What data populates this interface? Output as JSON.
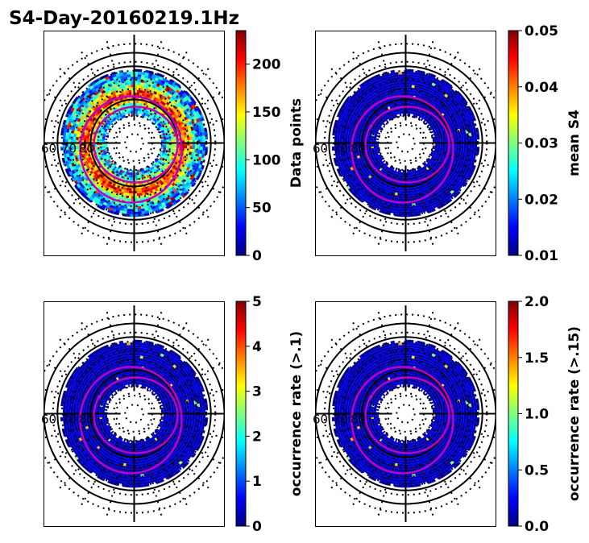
{
  "figure_title": "S4-Day-20160219.1Hz",
  "colormap": [
    "#00007f",
    "#0000ff",
    "#007fff",
    "#00ffff",
    "#7fff7f",
    "#ffff00",
    "#ff7f00",
    "#ff0000",
    "#7f0000"
  ],
  "chart_data": [
    {
      "type": "heatmap",
      "projection": "polar",
      "title": "",
      "colorbar_label": "Data points",
      "vmin": 0,
      "vmax": 235,
      "colorbar_ticks": [
        "0",
        "50",
        "100",
        "150",
        "200"
      ],
      "colorbar_tick_values": [
        0,
        50,
        100,
        150,
        200
      ],
      "lat_tick_labels": [
        "60",
        "70",
        "80"
      ],
      "field": "datapoints"
    },
    {
      "type": "heatmap",
      "projection": "polar",
      "title": "",
      "colorbar_label": "mean S4",
      "vmin": 0.01,
      "vmax": 0.05,
      "colorbar_ticks": [
        "0.01",
        "0.02",
        "0.03",
        "0.04",
        "0.05"
      ],
      "colorbar_tick_values": [
        0.01,
        0.02,
        0.03,
        0.04,
        0.05
      ],
      "lat_tick_labels": [
        "60",
        "70",
        "80"
      ],
      "field": "low"
    },
    {
      "type": "heatmap",
      "projection": "polar",
      "title": "",
      "colorbar_label": "occurrence rate (>.1)",
      "vmin": 0,
      "vmax": 5,
      "colorbar_ticks": [
        "0",
        "1",
        "2",
        "3",
        "4",
        "5"
      ],
      "colorbar_tick_values": [
        0,
        1,
        2,
        3,
        4,
        5
      ],
      "lat_tick_labels": [
        "60",
        "70",
        "80"
      ],
      "field": "low"
    },
    {
      "type": "heatmap",
      "projection": "polar",
      "title": "",
      "colorbar_label": "occurrence rate (>.15)",
      "vmin": 0,
      "vmax": 2,
      "colorbar_ticks": [
        "0.0",
        "0.5",
        "1.0",
        "1.5",
        "2.0"
      ],
      "colorbar_tick_values": [
        0,
        0.5,
        1,
        1.5,
        2
      ],
      "lat_tick_labels": [
        "60",
        "70",
        "80"
      ],
      "field": "low"
    }
  ]
}
